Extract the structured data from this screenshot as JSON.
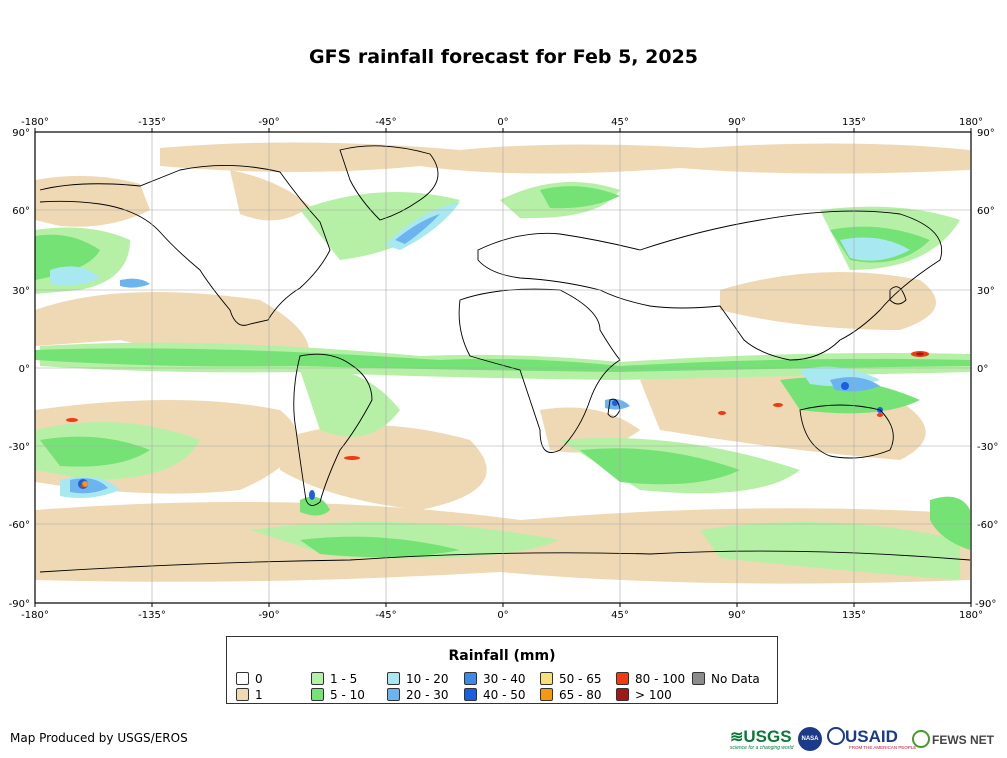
{
  "title": "GFS rainfall forecast for Feb 5, 2025",
  "map": {
    "lon_ticks": [
      "-180°",
      "-135°",
      "-90°",
      "-45°",
      "0°",
      "45°",
      "90°",
      "135°",
      "180°"
    ],
    "lat_ticks": [
      "90°",
      "60°",
      "30°",
      "0°",
      "-30°",
      "-60°",
      "-90°"
    ]
  },
  "legend": {
    "title": "Rainfall (mm)",
    "items": [
      {
        "label": "0",
        "color": "#ffffff"
      },
      {
        "label": "1",
        "color": "#eed9b4"
      },
      {
        "label": "1 - 5",
        "color": "#b6f0a6"
      },
      {
        "label": "5 - 10",
        "color": "#74e274"
      },
      {
        "label": "10 - 20",
        "color": "#a8e8f0"
      },
      {
        "label": "20 - 30",
        "color": "#6cb4f0"
      },
      {
        "label": "30 - 40",
        "color": "#3c8ae6"
      },
      {
        "label": "40 - 50",
        "color": "#1c5ee0"
      },
      {
        "label": "50 - 65",
        "color": "#f5e07a"
      },
      {
        "label": "65 - 80",
        "color": "#f59a10"
      },
      {
        "label": "80 - 100",
        "color": "#f03a10"
      },
      {
        "label": "> 100",
        "color": "#a01818"
      },
      {
        "label": "No Data",
        "color": "#8c8c8c"
      }
    ]
  },
  "credit": "Map Produced by USGS/EROS",
  "logos": {
    "usgs": "USGS",
    "usgs_tagline": "science for a changing world",
    "nasa": "NASA",
    "usaid": "USAID",
    "usaid_tagline": "FROM THE AMERICAN PEOPLE",
    "fewsnet": "FEWS NET"
  }
}
